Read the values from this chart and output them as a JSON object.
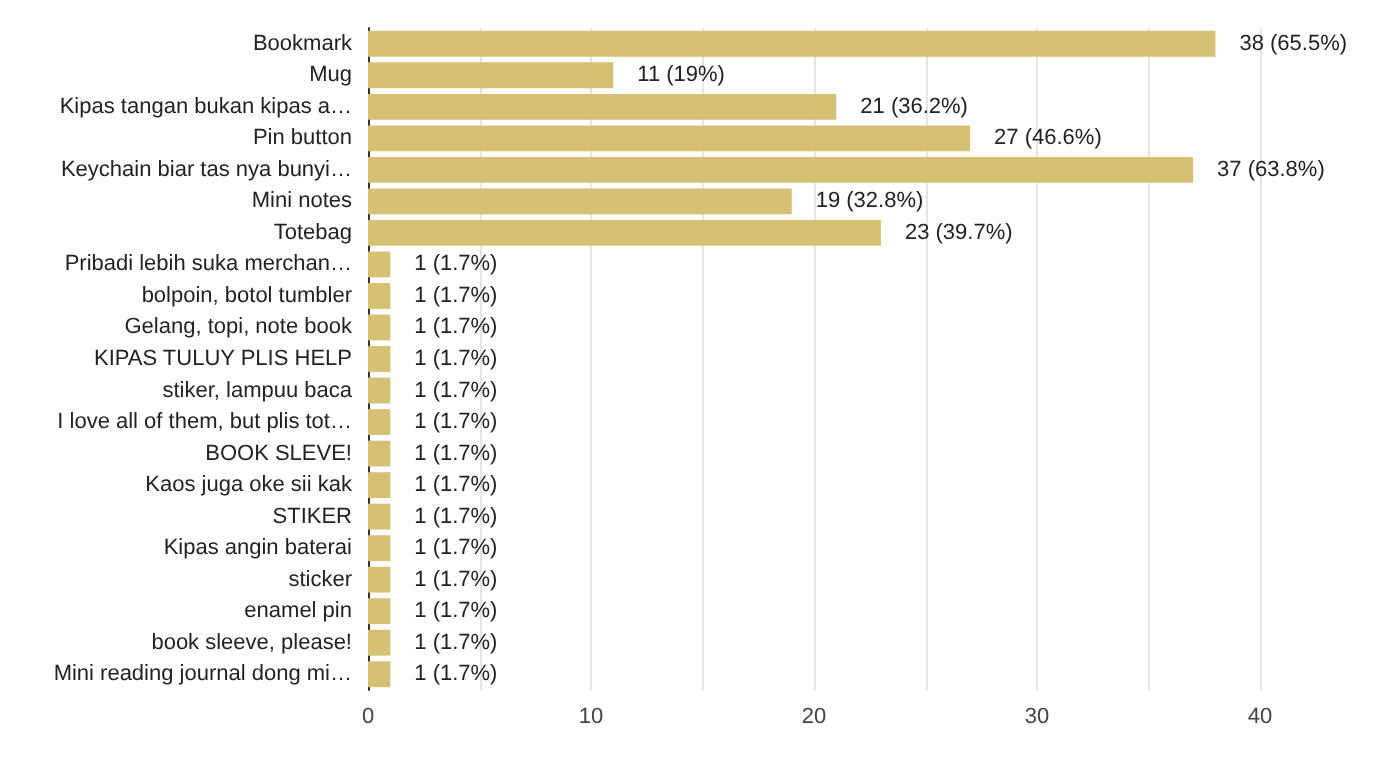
{
  "chart_data": {
    "type": "bar",
    "orientation": "horizontal",
    "categories": [
      "Bookmark",
      "Mug",
      "Kipas tangan bukan kipas a…",
      "Pin button",
      "Keychain biar tas nya bunyi…",
      "Mini notes",
      "Totebag",
      "Pribadi lebih suka merchan…",
      "bolpoin, botol tumbler",
      "Gelang, topi, note book",
      "KIPAS TULUY PLIS HELP",
      "stiker, lampuu baca",
      "I love all of them, but plis tot…",
      "BOOK SLEVE!",
      "Kaos juga oke sii kak",
      "STIKER",
      "Kipas angin baterai",
      "sticker",
      "enamel pin",
      "book sleeve, please!",
      "Mini reading journal dong mi…"
    ],
    "values": [
      38,
      11,
      21,
      27,
      37,
      19,
      23,
      1,
      1,
      1,
      1,
      1,
      1,
      1,
      1,
      1,
      1,
      1,
      1,
      1,
      1
    ],
    "value_labels": [
      "38 (65.5%)",
      "11 (19%)",
      "21 (36.2%)",
      "27 (46.6%)",
      "37 (63.8%)",
      "19 (32.8%)",
      "23 (39.7%)",
      "1 (1.7%)",
      "1 (1.7%)",
      "1 (1.7%)",
      "1 (1.7%)",
      "1 (1.7%)",
      "1 (1.7%)",
      "1 (1.7%)",
      "1 (1.7%)",
      "1 (1.7%)",
      "1 (1.7%)",
      "1 (1.7%)",
      "1 (1.7%)",
      "1 (1.7%)",
      "1 (1.7%)"
    ],
    "color": "#d6c074",
    "xlim": [
      0,
      40
    ],
    "xticks": [
      0,
      {
        "value": 5,
        "label": null
      },
      10,
      {
        "value": 15,
        "label": null
      },
      20,
      {
        "value": 25,
        "label": null
      },
      30,
      {
        "value": 35,
        "label": null
      },
      40
    ],
    "grid": "x"
  }
}
